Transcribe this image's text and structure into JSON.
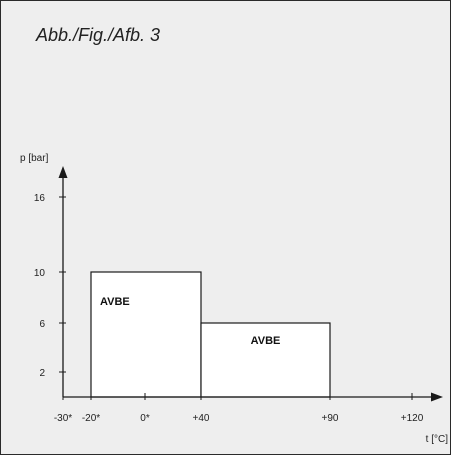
{
  "figure": {
    "title": "Abb./Fig./Afb. 3"
  },
  "chart_data": {
    "type": "area",
    "ylabel": "p [bar]",
    "xlabel": "t [°C]",
    "x_ticks": [
      {
        "value": -30,
        "label": "-30*"
      },
      {
        "value": -20,
        "label": "-20*"
      },
      {
        "value": 0,
        "label": "0*"
      },
      {
        "value": 40,
        "label": "+40"
      },
      {
        "value": 90,
        "label": "+90"
      },
      {
        "value": 120,
        "label": "+120"
      }
    ],
    "y_ticks": [
      {
        "value": 2,
        "label": "2"
      },
      {
        "value": 6,
        "label": "6"
      },
      {
        "value": 10,
        "label": "10"
      },
      {
        "value": 16,
        "label": "16"
      }
    ],
    "regions": [
      {
        "label": "AVBE",
        "x": [
          -20,
          40
        ],
        "y": [
          0,
          10
        ]
      },
      {
        "label": "AVBE",
        "x": [
          40,
          90
        ],
        "y": [
          0,
          6
        ]
      }
    ],
    "colors": {
      "region_fill": "#ffffff",
      "background": "#eeeeee",
      "ink": "#1a1a1a"
    }
  }
}
